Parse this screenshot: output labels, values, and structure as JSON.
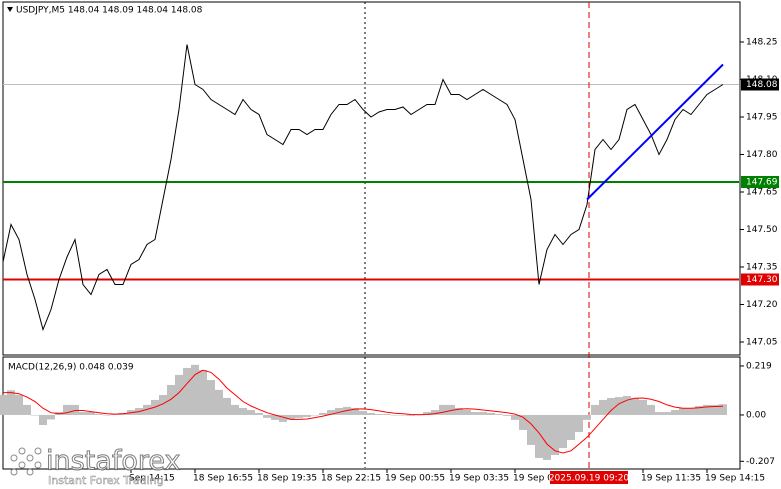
{
  "chart_data": [
    {
      "type": "line",
      "title": "USDJPY,M5  148.04 148.09 148.04 148.08",
      "x": [
        0,
        4,
        8,
        12,
        16,
        20,
        24,
        28,
        32,
        36,
        40,
        44,
        48,
        52,
        56,
        60,
        64,
        68,
        72,
        76,
        80,
        84,
        88,
        92,
        96,
        100,
        104,
        108,
        112,
        116,
        120,
        124,
        128,
        132,
        136,
        140,
        144,
        148,
        152,
        156,
        160,
        164,
        168,
        172,
        176,
        180,
        184,
        188,
        192,
        196,
        200,
        204,
        208,
        212,
        216,
        220,
        224,
        228,
        232,
        236,
        240,
        244,
        248,
        252,
        256,
        260,
        264,
        268,
        272,
        276,
        280,
        284,
        288,
        292,
        296,
        300,
        304,
        308,
        312,
        316,
        320,
        324,
        328,
        332,
        336,
        340,
        344,
        348,
        352,
        356,
        360
      ],
      "values": [
        147.37,
        147.52,
        147.46,
        147.32,
        147.22,
        147.1,
        147.18,
        147.3,
        147.39,
        147.46,
        147.28,
        147.24,
        147.32,
        147.34,
        147.28,
        147.28,
        147.36,
        147.38,
        147.44,
        147.46,
        147.62,
        147.78,
        147.98,
        148.24,
        148.08,
        148.06,
        148.02,
        148.0,
        147.98,
        147.96,
        148.02,
        147.98,
        147.96,
        147.88,
        147.86,
        147.84,
        147.9,
        147.9,
        147.88,
        147.9,
        147.9,
        147.96,
        148.0,
        148.0,
        148.02,
        147.98,
        147.95,
        147.97,
        147.98,
        147.98,
        147.99,
        147.96,
        147.98,
        148.0,
        148.0,
        148.1,
        148.04,
        148.04,
        148.02,
        148.04,
        148.06,
        148.04,
        148.02,
        148.0,
        147.94,
        147.78,
        147.62,
        147.28,
        147.42,
        147.48,
        147.44,
        147.48,
        147.5,
        147.6,
        147.82,
        147.86,
        147.82,
        147.86,
        147.98,
        148.0,
        147.94,
        147.88,
        147.8,
        147.86,
        147.94,
        147.98,
        147.96,
        148.0,
        148.04,
        148.06,
        148.08
      ],
      "color": "#000000",
      "xlim": [
        0,
        368
      ],
      "ylim": [
        147.0,
        148.41
      ],
      "yticks": [
        148.25,
        {
          "value": 148.1,
          "label": "148.10"
        },
        147.95,
        {
          "value": 147.8,
          "label": "147.80"
        },
        147.65,
        {
          "value": 147.5,
          "label": "147.50"
        },
        147.35,
        {
          "value": 147.2,
          "label": "147.20"
        },
        147.05
      ],
      "xticks": [
        {
          "value": 64,
          "label": "Sep 14:15"
        },
        {
          "value": 96,
          "label": "18 Sep 16:55"
        },
        {
          "value": 128,
          "label": "18 Sep 19:35"
        },
        {
          "value": 160,
          "label": "18 Sep 22:15"
        },
        {
          "value": 192,
          "label": "19 Sep 00:55"
        },
        {
          "value": 224,
          "label": "19 Sep 03:35"
        },
        {
          "value": 256,
          "label": "19 Sep 06:15"
        },
        {
          "value": 320,
          "label": "19 Sep 11:35"
        },
        {
          "value": 352,
          "label": "19 Sep 14:15"
        }
      ],
      "levels": [
        {
          "value": 147.69,
          "color": "#008000"
        },
        {
          "value": 147.3,
          "label": "147.30",
          "color": "#e00000"
        }
      ],
      "last_price": 148.08,
      "trendline": {
        "x": [
          292,
          360
        ],
        "values": [
          147.62,
          148.16
        ],
        "color": "#0000ff"
      },
      "marker": {
        "x": 293,
        "label": "2025.09.19 09:20",
        "color": "#e00000"
      },
      "separators": [
        181
      ]
    },
    {
      "type": "bar",
      "title": "MACD(12,26,9) 0.048 0.039",
      "x": [
        0,
        4,
        8,
        12,
        16,
        20,
        24,
        28,
        32,
        36,
        40,
        44,
        48,
        52,
        56,
        60,
        64,
        68,
        72,
        76,
        80,
        84,
        88,
        92,
        96,
        100,
        104,
        108,
        112,
        116,
        120,
        124,
        128,
        132,
        136,
        140,
        144,
        148,
        152,
        156,
        160,
        164,
        168,
        172,
        176,
        180,
        184,
        188,
        192,
        196,
        200,
        204,
        208,
        212,
        216,
        220,
        224,
        228,
        232,
        236,
        240,
        244,
        248,
        252,
        256,
        260,
        264,
        268,
        272,
        276,
        280,
        284,
        288,
        292,
        296,
        300,
        304,
        308,
        312,
        316,
        320,
        324,
        328,
        332,
        336,
        340,
        344,
        348,
        352,
        356,
        360
      ],
      "series": [
        {
          "color": "#c0c0c0",
          "values": [
            0.09,
            0.11,
            0.09,
            0.045,
            0,
            -0.045,
            -0.02,
            0.013,
            0.045,
            0.045,
            0.013,
            0.013,
            0.004,
            0,
            0.004,
            0.009,
            0.022,
            0.031,
            0.045,
            0.067,
            0.089,
            0.134,
            0.179,
            0.21,
            0.224,
            0.201,
            0.156,
            0.112,
            0.076,
            0.045,
            0.031,
            0.022,
            0.009,
            -0.013,
            -0.022,
            -0.031,
            -0.022,
            -0.013,
            -0.009,
            0,
            0.009,
            0.022,
            0.031,
            0.036,
            0.031,
            0.018,
            0.009,
            0.004,
            0.004,
            0,
            0,
            -0.004,
            0.004,
            0.013,
            0.022,
            0.045,
            0.045,
            0.031,
            0.022,
            0.013,
            0.013,
            0.009,
            0.004,
            -0.004,
            -0.022,
            -0.067,
            -0.134,
            -0.192,
            -0.201,
            -0.179,
            -0.148,
            -0.112,
            -0.076,
            -0.022,
            0.045,
            0.067,
            0.076,
            0.08,
            0.085,
            0.076,
            0.067,
            0.045,
            0.013,
            0.013,
            0.022,
            0.031,
            0.031,
            0.04,
            0.045,
            0.045,
            0.048
          ]
        },
        {
          "color": "#ff0000",
          "style": "line",
          "values": [
            0.1,
            0.1,
            0.095,
            0.08,
            0.06,
            0.03,
            0.01,
            0.005,
            0.01,
            0.02,
            0.02,
            0.015,
            0.01,
            0.005,
            0.004,
            0.005,
            0.01,
            0.015,
            0.025,
            0.035,
            0.05,
            0.07,
            0.1,
            0.14,
            0.18,
            0.2,
            0.19,
            0.16,
            0.12,
            0.09,
            0.06,
            0.04,
            0.025,
            0.01,
            0,
            -0.01,
            -0.02,
            -0.02,
            -0.018,
            -0.012,
            -0.005,
            0.003,
            0.012,
            0.02,
            0.026,
            0.027,
            0.024,
            0.018,
            0.012,
            0.008,
            0.005,
            0.002,
            0.001,
            0.002,
            0.006,
            0.012,
            0.02,
            0.026,
            0.028,
            0.026,
            0.022,
            0.018,
            0.014,
            0.01,
            0.004,
            -0.01,
            -0.04,
            -0.08,
            -0.13,
            -0.16,
            -0.17,
            -0.16,
            -0.13,
            -0.1,
            -0.06,
            -0.02,
            0.02,
            0.05,
            0.066,
            0.075,
            0.076,
            0.07,
            0.06,
            0.045,
            0.035,
            0.03,
            0.03,
            0.032,
            0.036,
            0.038,
            0.039
          ]
        }
      ],
      "xlim": [
        0,
        368
      ],
      "ylim": [
        -0.237,
        0.259
      ],
      "yticks": [
        0.219,
        {
          "value": 0,
          "label": "0.00"
        },
        -0.207
      ]
    }
  ],
  "watermark": {
    "brand": "instaforex",
    "tagline": "Instant Forex Trading"
  }
}
